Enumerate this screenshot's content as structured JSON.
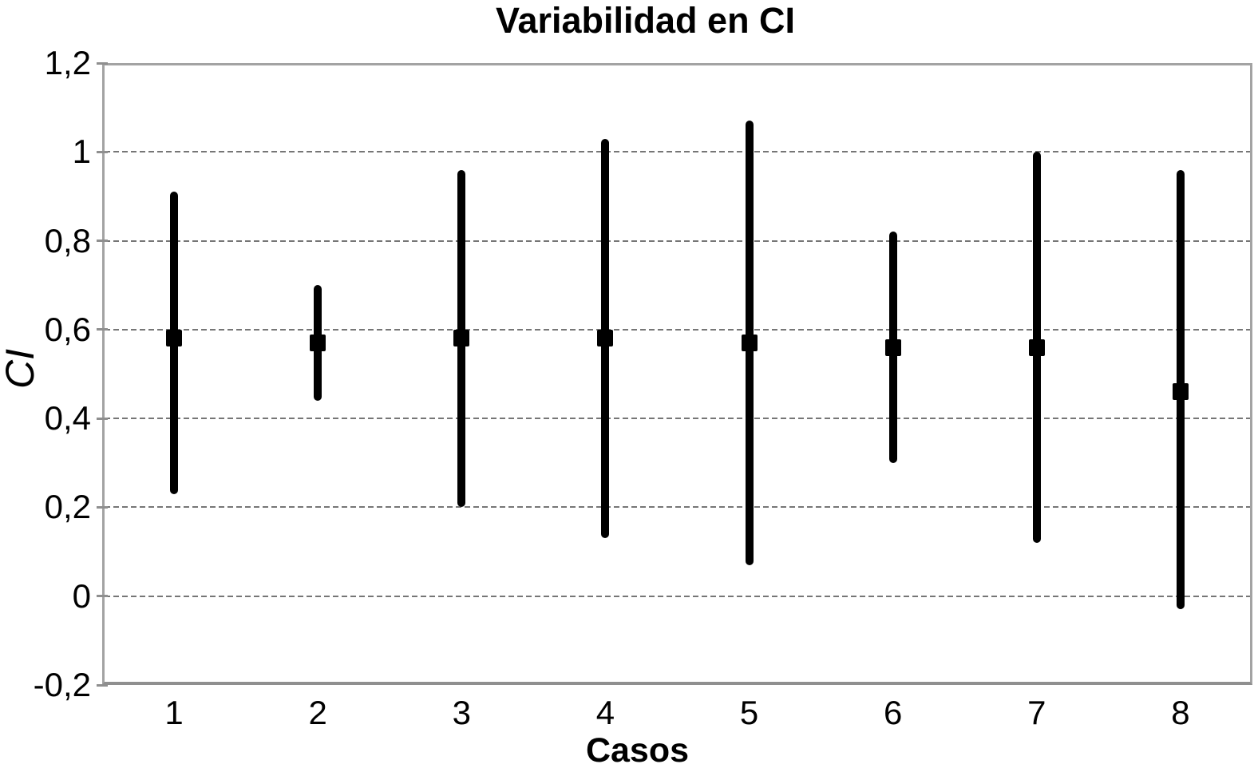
{
  "chart_data": {
    "type": "errorbar",
    "title": "Variabilidad en CI",
    "xlabel": "Casos",
    "ylabel": "CI",
    "categories": [
      "1",
      "2",
      "3",
      "4",
      "5",
      "6",
      "7",
      "8"
    ],
    "ylim": [
      -0.2,
      1.2
    ],
    "yticks": [
      {
        "value": 1.2,
        "label": "1,2"
      },
      {
        "value": 1.0,
        "label": "1"
      },
      {
        "value": 0.8,
        "label": "0,8"
      },
      {
        "value": 0.6,
        "label": "0,6"
      },
      {
        "value": 0.4,
        "label": "0,4"
      },
      {
        "value": 0.2,
        "label": "0,2"
      },
      {
        "value": 0.0,
        "label": "0"
      },
      {
        "value": -0.2,
        "label": "-0,2"
      }
    ],
    "grid": "horizontal-dashed",
    "legend_position": "none",
    "series": [
      {
        "name": "CI",
        "marker": "black-square",
        "points": [
          {
            "case": "1",
            "low": 0.23,
            "mid": 0.58,
            "high": 0.91
          },
          {
            "case": "2",
            "low": 0.44,
            "mid": 0.57,
            "high": 0.7
          },
          {
            "case": "3",
            "low": 0.2,
            "mid": 0.58,
            "high": 0.96
          },
          {
            "case": "4",
            "low": 0.13,
            "mid": 0.58,
            "high": 1.03
          },
          {
            "case": "5",
            "low": 0.07,
            "mid": 0.57,
            "high": 1.07
          },
          {
            "case": "6",
            "low": 0.3,
            "mid": 0.56,
            "high": 0.82
          },
          {
            "case": "7",
            "low": 0.12,
            "mid": 0.56,
            "high": 1.0
          },
          {
            "case": "8",
            "low": -0.03,
            "mid": 0.46,
            "high": 0.96
          }
        ]
      }
    ],
    "colors": {
      "bar": "#000000",
      "marker": "#000000",
      "grid": "#767676",
      "border": "#a3a3a3",
      "text": "#000000",
      "background": "#ffffff"
    }
  }
}
